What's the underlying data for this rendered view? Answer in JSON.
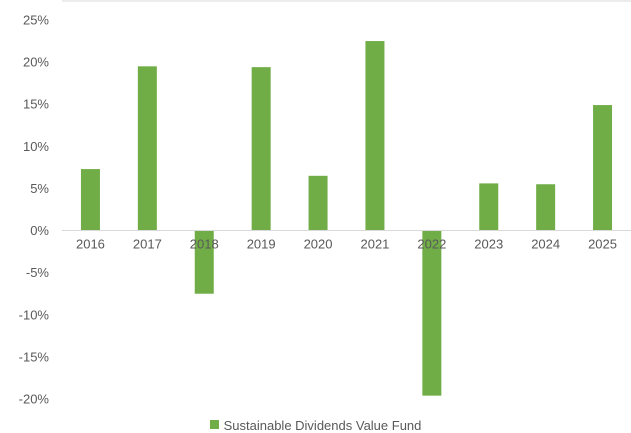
{
  "chart_data": {
    "type": "bar",
    "categories": [
      "2016",
      "2017",
      "2018",
      "2019",
      "2020",
      "2021",
      "2022",
      "2023",
      "2024",
      "2025"
    ],
    "series": [
      {
        "name": "Sustainable Dividends Value Fund",
        "values": [
          7.3,
          19.5,
          -7.5,
          19.4,
          6.5,
          22.5,
          -19.6,
          5.6,
          5.5,
          14.9
        ],
        "color": "#70ad47"
      }
    ],
    "ylim": [
      -20,
      25
    ],
    "y_ticks": [
      25,
      20,
      15,
      10,
      5,
      0,
      -5,
      -10,
      -15,
      -20
    ],
    "y_tick_format": "percent",
    "legend_position": "bottom",
    "grid": false
  }
}
